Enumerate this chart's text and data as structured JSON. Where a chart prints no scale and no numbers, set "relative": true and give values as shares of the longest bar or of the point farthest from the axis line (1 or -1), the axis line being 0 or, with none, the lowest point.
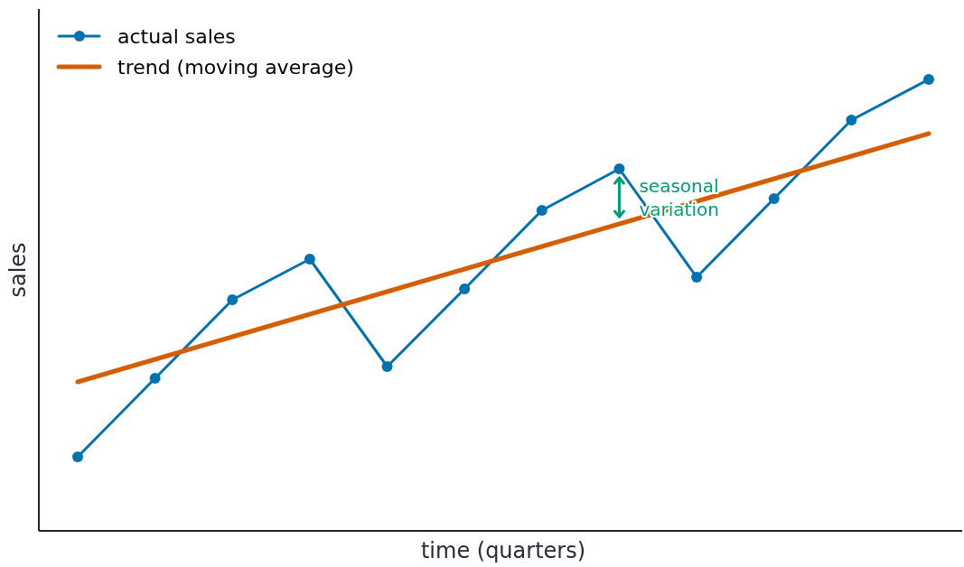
{
  "chart_data": {
    "type": "line",
    "relative": true,
    "xlabel": "time (quarters)",
    "ylabel": "sales",
    "categories": [
      null,
      null,
      null,
      null,
      null,
      null,
      null,
      null,
      null,
      null,
      null,
      null
    ],
    "series": [
      {
        "name": "actual sales",
        "color": "#0072b2",
        "marker": "circle",
        "values": [
          0.164,
          0.338,
          0.512,
          0.602,
          0.364,
          0.536,
          0.71,
          0.802,
          0.562,
          0.736,
          0.91,
          1
        ]
      },
      {
        "name": "trend (moving average)",
        "color": "#d55e00",
        "marker": "none",
        "values": [
          0.33,
          0.38,
          0.43,
          0.48,
          0.53,
          0.58,
          0.63,
          0.68,
          0.73,
          0.78,
          0.83,
          0.88
        ]
      }
    ],
    "annotations": [
      "seasonal\nvariation"
    ],
    "legend": "top left",
    "line_style": "solid"
  }
}
